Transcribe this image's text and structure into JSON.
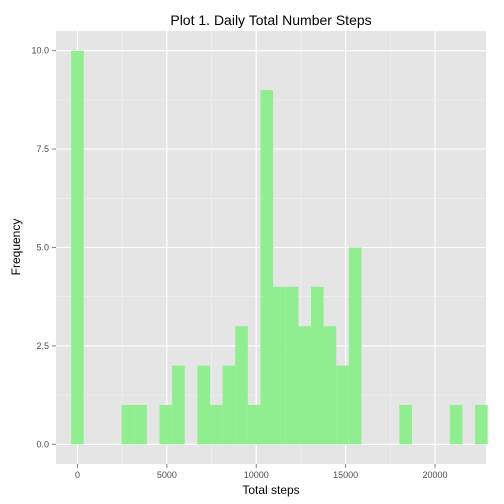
{
  "chart_data": {
    "type": "bar",
    "subtype": "histogram",
    "title": "Plot 1. Daily Total Number Steps",
    "xlabel": "Total steps",
    "ylabel": "Frequency",
    "xlim": [
      -1200,
      22850
    ],
    "ylim": [
      -0.5,
      10.5
    ],
    "bin_width": 706,
    "x_ticks": [
      {
        "value": 0,
        "label": "0"
      },
      {
        "value": 5000,
        "label": "5000"
      },
      {
        "value": 10000,
        "label": "10000"
      },
      {
        "value": 15000,
        "label": "15000"
      },
      {
        "value": 20000,
        "label": "20000"
      }
    ],
    "y_ticks": [
      {
        "value": 0,
        "label": "0.0"
      },
      {
        "value": 2.5,
        "label": "2.5"
      },
      {
        "value": 5,
        "label": "5.0"
      },
      {
        "value": 7.5,
        "label": "7.5"
      },
      {
        "value": 10,
        "label": "10.0"
      }
    ],
    "bins": [
      {
        "x": 0,
        "count": 10
      },
      {
        "x": 2824,
        "count": 1
      },
      {
        "x": 3530,
        "count": 1
      },
      {
        "x": 4942,
        "count": 1
      },
      {
        "x": 5648,
        "count": 2
      },
      {
        "x": 7060,
        "count": 2
      },
      {
        "x": 7766,
        "count": 1
      },
      {
        "x": 8472,
        "count": 2
      },
      {
        "x": 9178,
        "count": 3
      },
      {
        "x": 9884,
        "count": 1
      },
      {
        "x": 10590,
        "count": 9
      },
      {
        "x": 11296,
        "count": 4
      },
      {
        "x": 12002,
        "count": 4
      },
      {
        "x": 12708,
        "count": 3
      },
      {
        "x": 13414,
        "count": 4
      },
      {
        "x": 14120,
        "count": 3
      },
      {
        "x": 14826,
        "count": 2
      },
      {
        "x": 15532,
        "count": 5
      },
      {
        "x": 18356,
        "count": 1
      },
      {
        "x": 21180,
        "count": 1
      },
      {
        "x": 22592,
        "count": 1
      }
    ],
    "colors": {
      "bar": "#90ee90",
      "panel": "#e5e5e5",
      "grid_major": "#ffffff",
      "grid_minor": "#f2f2f2",
      "tick_text": "#4d4d4d"
    },
    "grid": true,
    "legend": "none"
  }
}
